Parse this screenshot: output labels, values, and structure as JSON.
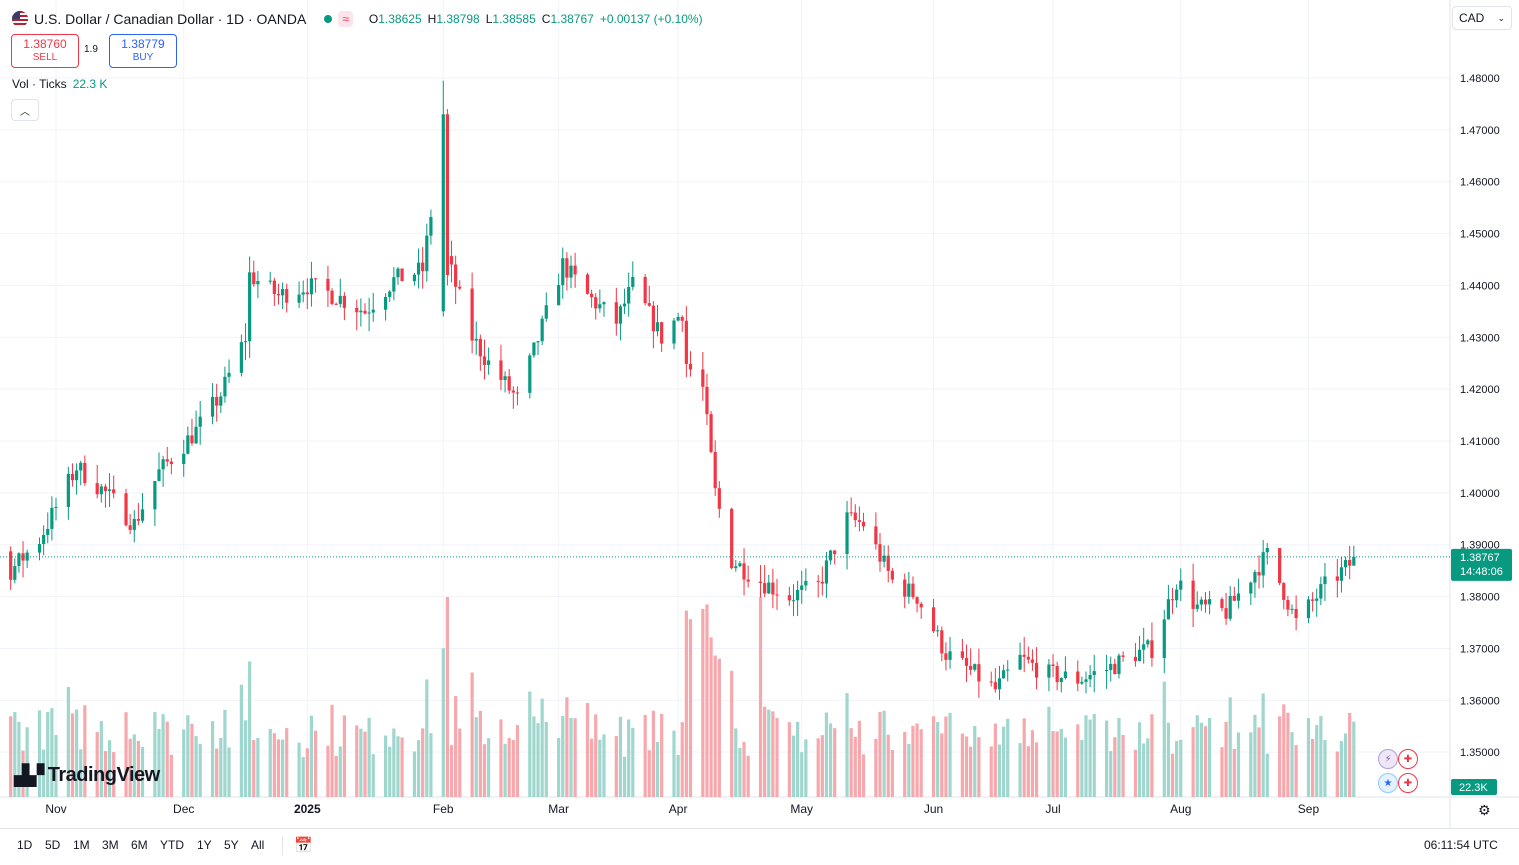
{
  "header": {
    "title": "U.S. Dollar / Canadian Dollar · 1D · OANDA",
    "wave_icon": "≈",
    "ohlc": [
      {
        "k": "O",
        "v": "1.38625"
      },
      {
        "k": "H",
        "v": "1.38798"
      },
      {
        "k": "L",
        "v": "1.38585"
      },
      {
        "k": "C",
        "v": "1.38767"
      },
      {
        "k": "",
        "v": "+0.00137 (+0.10%)"
      }
    ]
  },
  "trade": {
    "sell_price": "1.38760",
    "sell_label": "SELL",
    "spread": "1.9",
    "buy_price": "1.38779",
    "buy_label": "BUY"
  },
  "volume_legend": {
    "label": "Vol · Ticks",
    "value": "22.3 K"
  },
  "currency_select": "CAD",
  "logo_text": "TradingView",
  "time_ranges": [
    "1D",
    "5D",
    "1M",
    "3M",
    "6M",
    "YTD",
    "1Y",
    "5Y",
    "All"
  ],
  "clock": "06:11:54 UTC",
  "last_price_label": {
    "price": "1.38767",
    "countdown": "14:48:06"
  },
  "volume_label": "22.3K",
  "icons": {
    "flag": "us-ca-flag-icon",
    "collapse": "chevron-up-icon",
    "tools": "calendar-range-icon",
    "settings": "gear-icon",
    "events": "economic-events-icon"
  },
  "colors": {
    "up": "#089981",
    "down": "#f23645",
    "up_vol": "#9fd6cd",
    "down_vol": "#f6a8ad",
    "buy": "#2962ff"
  },
  "chart_data": {
    "type": "candlestick",
    "y_ticks": [
      "1.48000",
      "1.47000",
      "1.46000",
      "1.45000",
      "1.44000",
      "1.43000",
      "1.42000",
      "1.41000",
      "1.40000",
      "1.39000",
      "1.38000",
      "1.37000",
      "1.36000",
      "1.35000"
    ],
    "ylim": [
      1.341,
      1.484
    ],
    "x_labels": [
      {
        "label": "Nov",
        "date": "2024-11-01"
      },
      {
        "label": "Dec",
        "date": "2024-12-02"
      },
      {
        "label": "2025",
        "date": "2025-01-01"
      },
      {
        "label": "Feb",
        "date": "2025-02-03"
      },
      {
        "label": "Mar",
        "date": "2025-03-03"
      },
      {
        "label": "Apr",
        "date": "2025-04-01"
      },
      {
        "label": "May",
        "date": "2025-05-01"
      },
      {
        "label": "Jun",
        "date": "2025-06-02"
      },
      {
        "label": "Jul",
        "date": "2025-07-01"
      },
      {
        "label": "Aug",
        "date": "2025-08-01"
      },
      {
        "label": "Sep",
        "date": "2025-09-01"
      }
    ],
    "last_close": 1.38767,
    "trend_path": [
      [
        "2024-10-01",
        1.382
      ],
      [
        "2024-10-08",
        1.388
      ],
      [
        "2024-10-15",
        1.392
      ],
      [
        "2024-10-21",
        1.385
      ],
      [
        "2024-10-28",
        1.391
      ],
      [
        "2024-11-06",
        1.405
      ],
      [
        "2024-11-13",
        1.4
      ],
      [
        "2024-11-20",
        1.394
      ],
      [
        "2024-11-26",
        1.404
      ],
      [
        "2024-12-05",
        1.412
      ],
      [
        "2024-12-11",
        1.419
      ],
      [
        "2024-12-17",
        1.43
      ],
      [
        "2024-12-18",
        1.442
      ],
      [
        "2024-12-25",
        1.438
      ],
      [
        "2025-01-01",
        1.44
      ],
      [
        "2025-01-08",
        1.438
      ],
      [
        "2025-01-15",
        1.435
      ],
      [
        "2025-01-22",
        1.441
      ],
      [
        "2025-01-29",
        1.443
      ],
      [
        "2025-02-03",
        1.47
      ],
      [
        "2025-02-04",
        1.445
      ],
      [
        "2025-02-10",
        1.43
      ],
      [
        "2025-02-14",
        1.425
      ],
      [
        "2025-02-21",
        1.418
      ],
      [
        "2025-02-27",
        1.432
      ],
      [
        "2025-03-04",
        1.444
      ],
      [
        "2025-03-10",
        1.438
      ],
      [
        "2025-03-17",
        1.433
      ],
      [
        "2025-03-21",
        1.44
      ],
      [
        "2025-03-28",
        1.43
      ],
      [
        "2025-04-02",
        1.435
      ],
      [
        "2025-04-03",
        1.425
      ],
      [
        "2025-04-07",
        1.42
      ],
      [
        "2025-04-10",
        1.4
      ],
      [
        "2025-04-14",
        1.387
      ],
      [
        "2025-04-21",
        1.383
      ],
      [
        "2025-04-28",
        1.38
      ],
      [
        "2025-05-05",
        1.382
      ],
      [
        "2025-05-12",
        1.395
      ],
      [
        "2025-05-16",
        1.394
      ],
      [
        "2025-05-23",
        1.383
      ],
      [
        "2025-05-29",
        1.38
      ],
      [
        "2025-06-05",
        1.369
      ],
      [
        "2025-06-12",
        1.365
      ],
      [
        "2025-06-17",
        1.362
      ],
      [
        "2025-06-23",
        1.368
      ],
      [
        "2025-06-30",
        1.365
      ],
      [
        "2025-07-07",
        1.364
      ],
      [
        "2025-07-14",
        1.366
      ],
      [
        "2025-07-21",
        1.369
      ],
      [
        "2025-07-25",
        1.37
      ],
      [
        "2025-07-31",
        1.383
      ],
      [
        "2025-08-05",
        1.378
      ],
      [
        "2025-08-12",
        1.377
      ],
      [
        "2025-08-19",
        1.385
      ],
      [
        "2025-08-22",
        1.388
      ],
      [
        "2025-08-26",
        1.381
      ],
      [
        "2025-08-29",
        1.375
      ],
      [
        "2025-09-05",
        1.382
      ],
      [
        "2025-09-11",
        1.3862
      ],
      [
        "2025-09-12",
        1.3877
      ]
    ],
    "volume_range": [
      0,
      22.3
    ]
  }
}
